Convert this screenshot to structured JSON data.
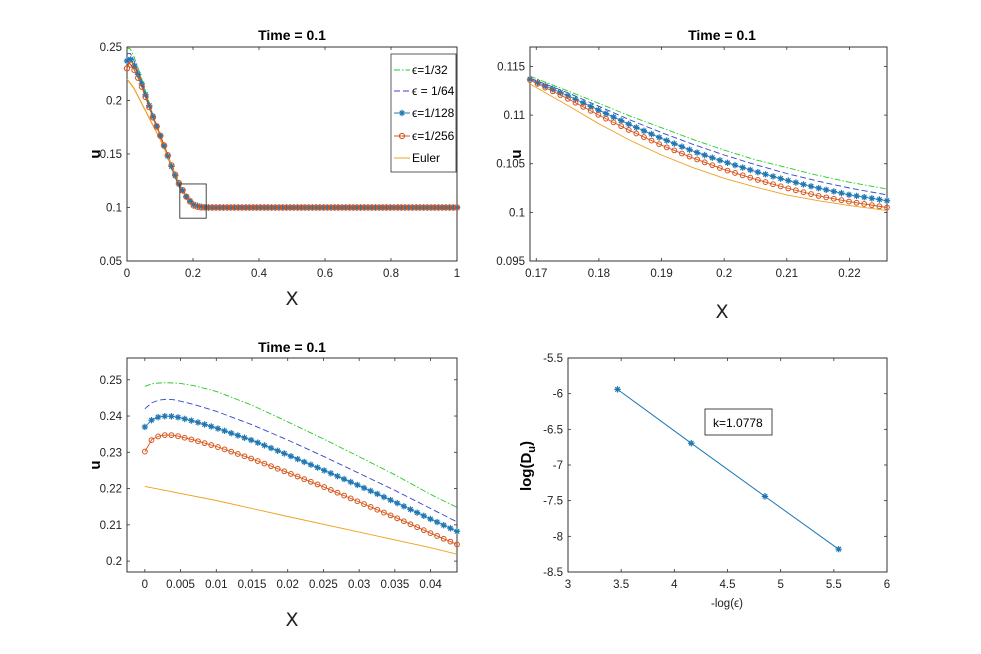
{
  "chart_data": [
    {
      "type": "line",
      "title": "Time = 0.1",
      "xlabel": "X",
      "ylabel": "u",
      "xlim": [
        0,
        1
      ],
      "ylim": [
        0.05,
        0.25
      ],
      "xticks": [
        "0",
        "0.2",
        "0.4",
        "0.6",
        "0.8",
        "1"
      ],
      "yticks": [
        "0.05",
        "0.1",
        "0.15",
        "0.2",
        "0.25"
      ],
      "legend": {
        "placement": "top-right",
        "entries": [
          "ϵ=1/32",
          "ϵ = 1/64",
          "ϵ=1/128",
          "ϵ=1/256",
          "Euler"
        ]
      },
      "zoom_box": {
        "x": [
          0.16,
          0.24
        ],
        "y": [
          0.09,
          0.122
        ]
      },
      "series": [
        {
          "name": "ϵ=1/32",
          "color": "#22cc22",
          "x": [
            0,
            0.005,
            0.01,
            0.02,
            0.04,
            0.06,
            0.08,
            0.1,
            0.12,
            0.14,
            0.16,
            0.18,
            0.2,
            0.22,
            0.24,
            0.3,
            0.5,
            0.8,
            1.0
          ],
          "y": [
            0.248,
            0.249,
            0.248,
            0.242,
            0.225,
            0.205,
            0.185,
            0.168,
            0.15,
            0.132,
            0.118,
            0.11,
            0.104,
            0.101,
            0.1,
            0.1,
            0.1,
            0.1,
            0.1
          ]
        },
        {
          "name": "ϵ = 1/64",
          "color": "#3344cc",
          "x": [
            0,
            0.005,
            0.01,
            0.02,
            0.04,
            0.06,
            0.08,
            0.1,
            0.12,
            0.14,
            0.16,
            0.18,
            0.2,
            0.22,
            0.24,
            0.3,
            0.5,
            0.8,
            1.0
          ],
          "y": [
            0.243,
            0.244,
            0.244,
            0.238,
            0.222,
            0.203,
            0.184,
            0.168,
            0.15,
            0.133,
            0.119,
            0.11,
            0.104,
            0.101,
            0.1,
            0.1,
            0.1,
            0.1,
            0.1
          ]
        },
        {
          "name": "ϵ=1/128",
          "color": "#1f77b4",
          "x": [
            0,
            0.005,
            0.01,
            0.02,
            0.04,
            0.06,
            0.08,
            0.1,
            0.12,
            0.14,
            0.16,
            0.18,
            0.2,
            0.22,
            0.24,
            0.3,
            0.5,
            0.8,
            1.0
          ],
          "y": [
            0.237,
            0.24,
            0.239,
            0.234,
            0.22,
            0.202,
            0.184,
            0.168,
            0.151,
            0.134,
            0.12,
            0.11,
            0.103,
            0.101,
            0.1,
            0.1,
            0.1,
            0.1,
            0.1
          ]
        },
        {
          "name": "ϵ=1/256",
          "color": "#d9541a",
          "x": [
            0,
            0.005,
            0.01,
            0.02,
            0.04,
            0.06,
            0.08,
            0.1,
            0.12,
            0.14,
            0.16,
            0.18,
            0.2,
            0.22,
            0.24,
            0.3,
            0.5,
            0.8,
            1.0
          ],
          "y": [
            0.23,
            0.235,
            0.234,
            0.23,
            0.217,
            0.2,
            0.183,
            0.168,
            0.152,
            0.135,
            0.121,
            0.11,
            0.102,
            0.1,
            0.1,
            0.1,
            0.1,
            0.1,
            0.1
          ]
        },
        {
          "name": "Euler",
          "color": "#f0a020",
          "x": [
            0,
            0.02,
            0.04,
            0.06,
            0.08,
            0.1,
            0.12,
            0.14,
            0.16,
            0.18,
            0.2,
            0.22,
            0.24,
            0.3,
            0.5,
            0.8,
            1.0
          ],
          "y": [
            0.22,
            0.212,
            0.2,
            0.188,
            0.176,
            0.164,
            0.15,
            0.136,
            0.121,
            0.109,
            0.102,
            0.1,
            0.1,
            0.1,
            0.1,
            0.1,
            0.1
          ]
        }
      ]
    },
    {
      "type": "line",
      "title": "Time = 0.1",
      "xlabel": "X",
      "ylabel": "u",
      "xlim": [
        0.169,
        0.226
      ],
      "ylim": [
        0.095,
        0.117
      ],
      "xticks": [
        "0.17",
        "0.18",
        "0.19",
        "0.2",
        "0.21",
        "0.22"
      ],
      "yticks": [
        "0.095",
        "0.1",
        "0.105",
        "0.11",
        "0.115"
      ],
      "series": [
        {
          "name": "ϵ=1/32",
          "color": "#22cc22",
          "x": [
            0.169,
            0.175,
            0.18,
            0.185,
            0.19,
            0.195,
            0.2,
            0.205,
            0.21,
            0.215,
            0.22,
            0.226
          ],
          "y": [
            0.114,
            0.1125,
            0.1112,
            0.1099,
            0.1087,
            0.1075,
            0.1064,
            0.1054,
            0.1046,
            0.1038,
            0.1031,
            0.1024
          ]
        },
        {
          "name": "ϵ = 1/64",
          "color": "#3344cc",
          "x": [
            0.169,
            0.175,
            0.18,
            0.185,
            0.19,
            0.195,
            0.2,
            0.205,
            0.21,
            0.215,
            0.22,
            0.226
          ],
          "y": [
            0.1138,
            0.1123,
            0.1109,
            0.1095,
            0.1082,
            0.107,
            0.1059,
            0.1049,
            0.104,
            0.1032,
            0.1025,
            0.1018
          ]
        },
        {
          "name": "ϵ=1/128",
          "color": "#1f77b4",
          "x": [
            0.169,
            0.175,
            0.18,
            0.185,
            0.19,
            0.195,
            0.2,
            0.205,
            0.21,
            0.215,
            0.22,
            0.226
          ],
          "y": [
            0.1137,
            0.112,
            0.1105,
            0.109,
            0.1076,
            0.1063,
            0.1052,
            0.1042,
            0.1033,
            0.1025,
            0.1018,
            0.1012
          ]
        },
        {
          "name": "ϵ=1/256",
          "color": "#d9541a",
          "x": [
            0.169,
            0.175,
            0.18,
            0.185,
            0.19,
            0.195,
            0.2,
            0.205,
            0.21,
            0.215,
            0.22,
            0.226
          ],
          "y": [
            0.1136,
            0.1117,
            0.11,
            0.1084,
            0.1069,
            0.1056,
            0.1044,
            0.1034,
            0.1025,
            0.1017,
            0.1011,
            0.1005
          ]
        },
        {
          "name": "Euler",
          "color": "#f0a020",
          "x": [
            0.169,
            0.175,
            0.18,
            0.185,
            0.19,
            0.195,
            0.2,
            0.205,
            0.21,
            0.215,
            0.22,
            0.226
          ],
          "y": [
            0.1132,
            0.111,
            0.1091,
            0.1074,
            0.1059,
            0.1046,
            0.1035,
            0.1026,
            0.1018,
            0.1012,
            0.1007,
            0.1002
          ]
        }
      ]
    },
    {
      "type": "line",
      "title": "Time = 0.1",
      "xlabel": "X",
      "ylabel": "u",
      "xlim": [
        -0.0025,
        0.0437
      ],
      "ylim": [
        0.197,
        0.256
      ],
      "xticks": [
        "0",
        "0.005",
        "0.01",
        "0.015",
        "0.02",
        "0.025",
        "0.03",
        "0.035",
        "0.04"
      ],
      "yticks": [
        "0.2",
        "0.21",
        "0.22",
        "0.23",
        "0.24",
        "0.25"
      ],
      "series": [
        {
          "name": "ϵ=1/32",
          "color": "#22cc22",
          "x": [
            0,
            0.001,
            0.002,
            0.003,
            0.004,
            0.005,
            0.007,
            0.01,
            0.015,
            0.02,
            0.025,
            0.03,
            0.035,
            0.04,
            0.0437
          ],
          "y": [
            0.2482,
            0.2489,
            0.2491,
            0.2492,
            0.2491,
            0.249,
            0.2483,
            0.2468,
            0.243,
            0.2384,
            0.2337,
            0.2288,
            0.2238,
            0.2184,
            0.2148
          ]
        },
        {
          "name": "ϵ = 1/64",
          "color": "#3344cc",
          "x": [
            0,
            0.001,
            0.002,
            0.003,
            0.004,
            0.005,
            0.007,
            0.01,
            0.015,
            0.02,
            0.025,
            0.03,
            0.035,
            0.04,
            0.0437
          ],
          "y": [
            0.242,
            0.2437,
            0.2444,
            0.2446,
            0.2445,
            0.2441,
            0.2431,
            0.2413,
            0.2376,
            0.2334,
            0.2289,
            0.2242,
            0.2195,
            0.2145,
            0.2108
          ]
        },
        {
          "name": "ϵ=1/128",
          "color": "#1f77b4",
          "x": [
            0,
            0.001,
            0.002,
            0.003,
            0.004,
            0.005,
            0.007,
            0.01,
            0.015,
            0.02,
            0.025,
            0.03,
            0.035,
            0.04,
            0.0437
          ],
          "y": [
            0.237,
            0.239,
            0.2398,
            0.24,
            0.2399,
            0.2395,
            0.2385,
            0.2367,
            0.2333,
            0.2293,
            0.2251,
            0.2208,
            0.2163,
            0.2116,
            0.2082
          ]
        },
        {
          "name": "ϵ=1/256",
          "color": "#d9541a",
          "x": [
            0,
            0.001,
            0.002,
            0.003,
            0.004,
            0.005,
            0.007,
            0.01,
            0.015,
            0.02,
            0.025,
            0.03,
            0.035,
            0.04,
            0.0437
          ],
          "y": [
            0.2302,
            0.2336,
            0.2345,
            0.2348,
            0.2347,
            0.2343,
            0.2333,
            0.2316,
            0.2282,
            0.2244,
            0.2205,
            0.2163,
            0.2121,
            0.2077,
            0.2046
          ]
        },
        {
          "name": "Euler",
          "color": "#f0a020",
          "x": [
            0,
            0.01,
            0.02,
            0.03,
            0.04,
            0.0437
          ],
          "y": [
            0.2206,
            0.2167,
            0.2123,
            0.208,
            0.2037,
            0.2019
          ]
        }
      ]
    },
    {
      "type": "line",
      "title": "",
      "xlabel": "-log(ϵ)",
      "ylabel": "log(D_u)",
      "xlim": [
        3,
        6
      ],
      "ylim": [
        -8.5,
        -5.5
      ],
      "xticks": [
        "3",
        "3.5",
        "4",
        "4.5",
        "5",
        "5.5",
        "6"
      ],
      "yticks": [
        "-5.5",
        "-6",
        "-6.5",
        "-7",
        "-7.5",
        "-8",
        "-8.5"
      ],
      "annotation": "k=1.0778",
      "series": [
        {
          "name": "",
          "color": "#1f77b4",
          "x": [
            3.4657,
            4.1589,
            4.852,
            5.5452
          ],
          "y": [
            -5.94,
            -6.695,
            -7.44,
            -8.18
          ]
        }
      ]
    }
  ]
}
